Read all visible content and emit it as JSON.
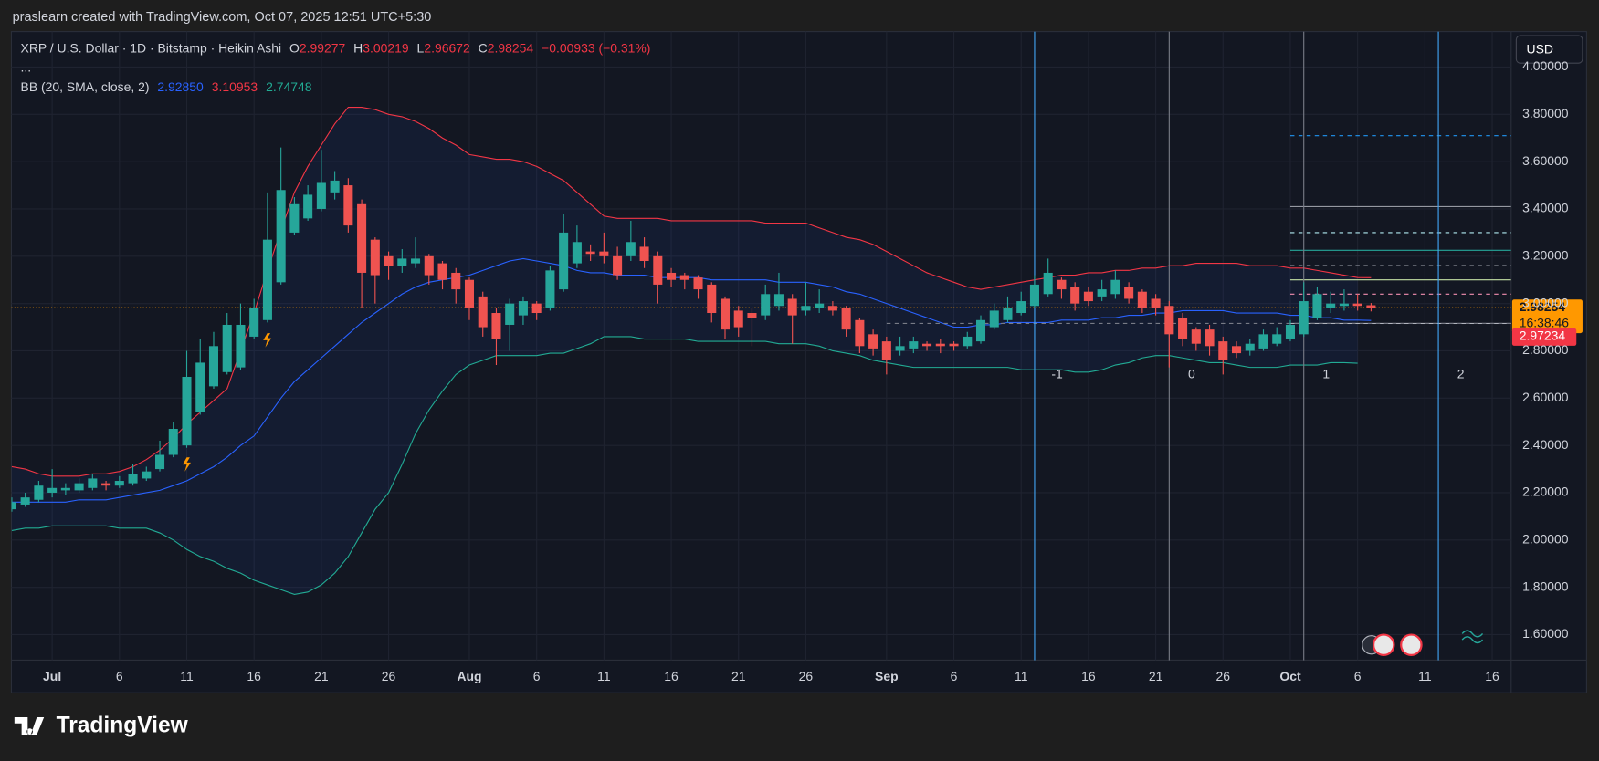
{
  "header": "praslearn created with TradingView.com, Oct 07, 2025 12:51 UTC+5:30",
  "footer_logo": "TradingView",
  "chart_data": {
    "type": "candlestick",
    "title": "XRP / U.S. Dollar · 1D · Bitstamp · Heikin Ashi",
    "more": "...",
    "legend_color": "#f23645",
    "ohlc_legend": [
      {
        "label": "O",
        "value": "2.99277"
      },
      {
        "label": "H",
        "value": "3.00219"
      },
      {
        "label": "L",
        "value": "2.96672"
      },
      {
        "label": "C",
        "value": "2.98254"
      }
    ],
    "change": "−0.00933 (−0.31%)",
    "indicator": {
      "name": "BB (20, SMA, close, 2)",
      "values": [
        "2.92850",
        "3.10953",
        "2.74748"
      ]
    },
    "categories": [
      null,
      null,
      null,
      "Jul",
      null,
      null,
      null,
      null,
      "6",
      null,
      null,
      null,
      null,
      "11",
      null,
      null,
      null,
      null,
      "16",
      null,
      null,
      null,
      null,
      "21",
      null,
      null,
      null,
      null,
      "26",
      null,
      null,
      null,
      null,
      null,
      "Aug",
      null,
      null,
      null,
      null,
      "6",
      null,
      null,
      null,
      null,
      "11",
      null,
      null,
      null,
      null,
      "16",
      null,
      null,
      null,
      null,
      "21",
      null,
      null,
      null,
      null,
      "26",
      null,
      null,
      null,
      null,
      null,
      "Sep",
      null,
      null,
      null,
      null,
      "6",
      null,
      null,
      null,
      null,
      "11",
      null,
      null,
      null,
      null,
      "16",
      null,
      null,
      null,
      null,
      "21",
      null,
      null,
      null,
      null,
      "26",
      null,
      null,
      null,
      null,
      "Oct",
      null,
      null,
      null,
      null,
      "6",
      null,
      null,
      null,
      null,
      "11",
      null,
      null,
      null,
      null,
      "16"
    ],
    "series": [
      {
        "up_color": "#26a69a",
        "down_color": "#ef5350",
        "open": [
          2.13,
          2.15,
          2.17,
          2.2,
          2.21,
          2.21,
          2.22,
          2.24,
          2.23,
          2.24,
          2.26,
          2.3,
          2.36,
          2.4,
          2.54,
          2.65,
          2.71,
          2.73,
          2.86,
          2.93,
          3.09,
          3.3,
          3.36,
          3.4,
          3.47,
          3.5,
          3.42,
          3.27,
          3.2,
          3.16,
          3.17,
          3.2,
          3.17,
          3.13,
          3.1,
          3.03,
          2.96,
          2.91,
          2.95,
          3.0,
          2.98,
          3.06,
          3.17,
          3.22,
          3.22,
          3.2,
          3.2,
          3.24,
          3.2,
          3.13,
          3.12,
          3.11,
          3.08,
          3.02,
          2.97,
          2.96,
          2.95,
          2.99,
          3.02,
          2.97,
          2.98,
          2.99,
          2.98,
          2.93,
          2.87,
          2.84,
          2.8,
          2.81,
          2.83,
          2.83,
          2.83,
          2.82,
          2.84,
          2.9,
          2.93,
          2.96,
          2.99,
          3.04,
          3.1,
          3.07,
          3.05,
          3.03,
          3.04,
          3.07,
          3.05,
          3.02,
          2.99,
          2.94,
          2.89,
          2.89,
          2.84,
          2.82,
          2.8,
          2.81,
          2.83,
          2.85,
          2.87,
          2.94,
          2.98,
          2.99,
          3.0,
          2.99277,
          null,
          null,
          null,
          null,
          null,
          null,
          null,
          null,
          null
        ],
        "high": [
          2.18,
          2.2,
          2.25,
          2.3,
          2.24,
          2.26,
          2.28,
          2.25,
          2.27,
          2.32,
          2.31,
          2.42,
          2.5,
          2.8,
          2.85,
          2.88,
          2.96,
          3.0,
          3.02,
          3.47,
          3.66,
          3.45,
          3.5,
          3.65,
          3.56,
          3.53,
          3.44,
          3.28,
          3.22,
          3.23,
          3.28,
          3.21,
          3.18,
          3.15,
          3.11,
          3.05,
          2.98,
          3.02,
          3.03,
          3.01,
          3.16,
          3.38,
          3.33,
          3.25,
          3.3,
          3.24,
          3.35,
          3.28,
          3.22,
          3.15,
          3.13,
          3.12,
          3.09,
          3.03,
          2.99,
          2.98,
          3.08,
          3.13,
          3.04,
          3.09,
          3.06,
          3.01,
          2.99,
          2.94,
          2.89,
          2.86,
          2.86,
          2.86,
          2.84,
          2.85,
          2.84,
          2.88,
          2.95,
          3.0,
          3.03,
          3.05,
          3.12,
          3.19,
          3.11,
          3.09,
          3.07,
          3.1,
          3.14,
          3.09,
          3.06,
          3.04,
          3.01,
          2.96,
          2.9,
          2.91,
          2.86,
          2.84,
          2.85,
          2.89,
          2.9,
          2.93,
          3.09,
          3.07,
          3.05,
          3.06,
          3.04,
          3.00219,
          null,
          null,
          null,
          null,
          null,
          null,
          null,
          null,
          null
        ],
        "low": [
          2.12,
          2.14,
          2.16,
          2.18,
          2.19,
          2.2,
          2.21,
          2.21,
          2.22,
          2.23,
          2.25,
          2.29,
          2.35,
          2.39,
          2.53,
          2.64,
          2.7,
          2.72,
          2.85,
          2.92,
          3.08,
          3.29,
          3.35,
          3.39,
          3.44,
          3.3,
          2.98,
          3.0,
          3.1,
          3.13,
          3.15,
          3.08,
          3.06,
          3.0,
          2.93,
          2.86,
          2.74,
          2.8,
          2.91,
          2.93,
          2.97,
          3.05,
          3.15,
          3.18,
          3.17,
          3.1,
          3.18,
          3.15,
          3.0,
          3.07,
          3.06,
          3.02,
          2.92,
          2.85,
          2.86,
          2.82,
          2.93,
          2.97,
          2.83,
          2.95,
          2.96,
          2.95,
          2.86,
          2.79,
          2.78,
          2.7,
          2.78,
          2.79,
          2.8,
          2.79,
          2.8,
          2.81,
          2.83,
          2.89,
          2.92,
          2.95,
          2.98,
          3.03,
          3.02,
          2.97,
          2.99,
          3.01,
          3.02,
          3.0,
          2.96,
          2.95,
          2.73,
          2.82,
          2.8,
          2.78,
          2.7,
          2.77,
          2.78,
          2.8,
          2.82,
          2.84,
          2.86,
          2.93,
          2.96,
          2.97,
          2.97,
          2.96672,
          null,
          null,
          null,
          null,
          null,
          null,
          null,
          null,
          null
        ],
        "close": [
          2.16,
          2.18,
          2.23,
          2.22,
          2.22,
          2.24,
          2.26,
          2.23,
          2.25,
          2.28,
          2.29,
          2.36,
          2.47,
          2.69,
          2.75,
          2.82,
          2.91,
          2.91,
          2.98,
          3.27,
          3.48,
          3.42,
          3.46,
          3.51,
          3.52,
          3.33,
          3.13,
          3.12,
          3.16,
          3.19,
          3.19,
          3.12,
          3.1,
          3.06,
          2.98,
          2.9,
          2.85,
          3.0,
          3.01,
          2.96,
          3.14,
          3.3,
          3.26,
          3.21,
          3.2,
          3.12,
          3.26,
          3.18,
          3.08,
          3.1,
          3.1,
          3.06,
          2.96,
          2.89,
          2.9,
          2.94,
          3.04,
          3.04,
          2.95,
          2.99,
          3.0,
          2.97,
          2.89,
          2.82,
          2.81,
          2.76,
          2.82,
          2.84,
          2.82,
          2.82,
          2.82,
          2.86,
          2.93,
          2.97,
          2.98,
          3.01,
          3.08,
          3.13,
          3.06,
          3.0,
          3.01,
          3.06,
          3.1,
          3.02,
          2.98,
          2.98,
          2.87,
          2.85,
          2.83,
          2.82,
          2.76,
          2.79,
          2.83,
          2.87,
          2.87,
          2.91,
          3.01,
          3.04,
          3.0,
          3.0,
          2.99,
          2.98254,
          null,
          null,
          null,
          null,
          null,
          null,
          null,
          null,
          null
        ]
      }
    ],
    "band_fill": "#2962ff",
    "bands": [
      {
        "color": "#2962ff",
        "values": [
          2.16,
          2.16,
          2.16,
          2.16,
          2.16,
          2.17,
          2.17,
          2.17,
          2.18,
          2.19,
          2.2,
          2.21,
          2.23,
          2.25,
          2.28,
          2.31,
          2.35,
          2.4,
          2.44,
          2.52,
          2.6,
          2.67,
          2.72,
          2.77,
          2.82,
          2.87,
          2.92,
          2.96,
          3.0,
          3.04,
          3.07,
          3.09,
          3.1,
          3.11,
          3.12,
          3.14,
          3.16,
          3.18,
          3.19,
          3.18,
          3.17,
          3.16,
          3.14,
          3.13,
          3.13,
          3.12,
          3.12,
          3.12,
          3.11,
          3.11,
          3.11,
          3.11,
          3.1,
          3.1,
          3.1,
          3.1,
          3.1,
          3.09,
          3.09,
          3.09,
          3.08,
          3.07,
          3.05,
          3.04,
          3.02,
          3.0,
          2.98,
          2.96,
          2.94,
          2.92,
          2.9,
          2.9,
          2.91,
          2.91,
          2.92,
          2.92,
          2.92,
          2.92,
          2.93,
          2.93,
          2.93,
          2.94,
          2.94,
          2.95,
          2.95,
          2.96,
          2.96,
          2.97,
          2.97,
          2.97,
          2.97,
          2.96,
          2.96,
          2.96,
          2.96,
          2.95,
          2.95,
          2.94,
          2.94,
          2.93,
          2.93,
          2.9285,
          null,
          null,
          null,
          null,
          null,
          null,
          null,
          null,
          null
        ]
      },
      {
        "color": "#f23645",
        "values": [
          2.31,
          2.3,
          2.28,
          2.27,
          2.27,
          2.27,
          2.28,
          2.28,
          2.29,
          2.31,
          2.34,
          2.38,
          2.43,
          2.49,
          2.54,
          2.59,
          2.64,
          2.8,
          2.96,
          3.14,
          3.31,
          3.47,
          3.58,
          3.67,
          3.76,
          3.83,
          3.83,
          3.82,
          3.8,
          3.79,
          3.77,
          3.74,
          3.7,
          3.67,
          3.63,
          3.62,
          3.61,
          3.61,
          3.6,
          3.58,
          3.55,
          3.52,
          3.47,
          3.42,
          3.37,
          3.36,
          3.36,
          3.36,
          3.36,
          3.35,
          3.35,
          3.35,
          3.35,
          3.35,
          3.35,
          3.35,
          3.34,
          3.34,
          3.34,
          3.34,
          3.32,
          3.3,
          3.28,
          3.27,
          3.25,
          3.22,
          3.19,
          3.16,
          3.13,
          3.11,
          3.09,
          3.07,
          3.06,
          3.07,
          3.08,
          3.09,
          3.1,
          3.11,
          3.12,
          3.12,
          3.13,
          3.13,
          3.14,
          3.14,
          3.15,
          3.15,
          3.16,
          3.16,
          3.17,
          3.17,
          3.17,
          3.17,
          3.16,
          3.16,
          3.16,
          3.15,
          3.15,
          3.14,
          3.13,
          3.12,
          3.11,
          3.10953,
          null,
          null,
          null,
          null,
          null,
          null,
          null,
          null,
          null
        ]
      },
      {
        "color": "#22ab94",
        "values": [
          2.04,
          2.05,
          2.05,
          2.06,
          2.06,
          2.06,
          2.06,
          2.06,
          2.05,
          2.05,
          2.05,
          2.03,
          2.0,
          1.96,
          1.93,
          1.91,
          1.88,
          1.86,
          1.83,
          1.81,
          1.79,
          1.77,
          1.78,
          1.81,
          1.86,
          1.93,
          2.03,
          2.13,
          2.2,
          2.32,
          2.45,
          2.55,
          2.63,
          2.7,
          2.74,
          2.76,
          2.78,
          2.78,
          2.78,
          2.78,
          2.79,
          2.79,
          2.81,
          2.83,
          2.86,
          2.86,
          2.86,
          2.85,
          2.85,
          2.85,
          2.85,
          2.84,
          2.84,
          2.84,
          2.84,
          2.84,
          2.84,
          2.83,
          2.83,
          2.83,
          2.82,
          2.8,
          2.79,
          2.78,
          2.76,
          2.75,
          2.74,
          2.73,
          2.73,
          2.73,
          2.73,
          2.73,
          2.73,
          2.73,
          2.73,
          2.72,
          2.72,
          2.72,
          2.72,
          2.71,
          2.71,
          2.72,
          2.74,
          2.75,
          2.77,
          2.78,
          2.78,
          2.77,
          2.76,
          2.75,
          2.75,
          2.74,
          2.73,
          2.73,
          2.73,
          2.74,
          2.74,
          2.74,
          2.75,
          2.75,
          2.74748,
          null,
          null,
          null,
          null,
          null,
          null,
          null,
          null,
          null,
          null
        ]
      }
    ],
    "ylim": [
      1.492,
      4.15
    ],
    "yticks": [
      {
        "value": 1.6,
        "label": "1.60000"
      },
      {
        "value": 1.8,
        "label": "1.80000"
      },
      {
        "value": 2.0,
        "label": "2.00000"
      },
      {
        "value": 2.2,
        "label": "2.20000"
      },
      {
        "value": 2.4,
        "label": "2.40000"
      },
      {
        "value": 2.6,
        "label": "2.60000"
      },
      {
        "value": 2.8,
        "label": "2.80000"
      },
      {
        "value": 3.0,
        "label": "3.00000"
      },
      {
        "value": 3.2,
        "label": "3.20000"
      },
      {
        "value": 3.4,
        "label": "3.40000"
      },
      {
        "value": 3.6,
        "label": "3.60000"
      },
      {
        "value": 3.8,
        "label": "3.80000"
      },
      {
        "value": 4.0,
        "label": "4.00000"
      }
    ],
    "grid": true,
    "currency": "USD",
    "last_price": {
      "value": 2.98254,
      "label": "2.98254",
      "countdown": "16:38:46",
      "color": "#ff9800"
    },
    "prev_close": {
      "value": 2.97234,
      "label": "2.97234",
      "color": "#f23645"
    },
    "levels": [
      {
        "value": 3.71,
        "from": 95,
        "color": "#2196f3",
        "dash": true
      },
      {
        "value": 3.41,
        "from": 95,
        "color": "#9598a1",
        "dash": false
      },
      {
        "value": 3.3,
        "from": 95,
        "color": "#b2ebf2",
        "dash": true
      },
      {
        "value": 3.225,
        "from": 95,
        "color": "#26a69a",
        "dash": false
      },
      {
        "value": 3.16,
        "from": 95,
        "color": "#d1d4dc",
        "dash": true
      },
      {
        "value": 3.1,
        "from": 95,
        "color": "#c5e1a5",
        "dash": false
      },
      {
        "value": 3.04,
        "from": 95,
        "color": "#f48fb1",
        "dash": true
      },
      {
        "value": 2.916,
        "from": 95,
        "color": "#b2b5be",
        "dash": false
      },
      {
        "value": 2.916,
        "from": 65,
        "color": "#787b86",
        "dash": true
      }
    ],
    "time_zones": [
      {
        "index": 76,
        "label": "-1",
        "color": "#42a5f5"
      },
      {
        "index": 86,
        "label": "0",
        "color": "#787b86"
      },
      {
        "index": 96,
        "label": "1",
        "color": "#787b86"
      },
      {
        "index": 106,
        "label": "2",
        "color": "#42a5f5"
      }
    ]
  }
}
